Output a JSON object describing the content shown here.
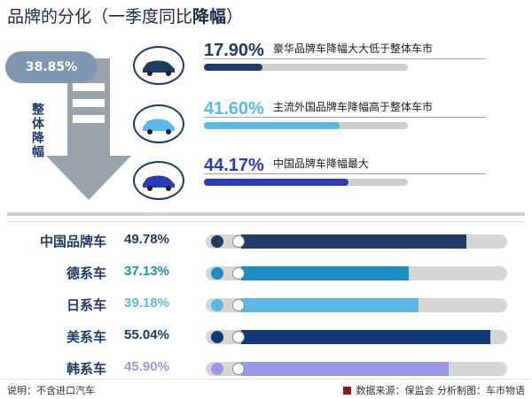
{
  "title": {
    "normal": "品牌的分化（一季度同比",
    "bold": "降幅",
    "close": "）"
  },
  "overall": {
    "value": "38.85%",
    "label": "整体降幅"
  },
  "chart_data": [
    {
      "type": "bar",
      "categories": [
        "豪华品牌车降幅大大低于整体车市",
        "主流外国品牌车降幅高于整体车市",
        "中国品牌车降幅最大"
      ],
      "values": [
        17.9,
        41.6,
        44.17
      ],
      "labels": [
        "17.90%",
        "41.60%",
        "44.17%"
      ],
      "colors": [
        "#1f3c66",
        "#5cb8e6",
        "#2a3db8"
      ],
      "ylim": [
        0,
        100
      ]
    },
    {
      "type": "bar",
      "categories": [
        "中国品牌车",
        "德系车",
        "日系车",
        "美系车",
        "韩系车"
      ],
      "values": [
        49.78,
        37.13,
        39.18,
        55.04,
        45.9
      ],
      "labels": [
        "49.78%",
        "37.13%",
        "39.18%",
        "55.04%",
        "45.90%"
      ],
      "colors": [
        "#1f3c66",
        "#1b8fc4",
        "#5cb8e6",
        "#123a7a",
        "#9c98e8"
      ],
      "ylim": [
        0,
        100
      ]
    }
  ],
  "footer": {
    "note": "说明：不含进口汽车",
    "source": "数据来源：保监会  分析制图：车市物语"
  }
}
